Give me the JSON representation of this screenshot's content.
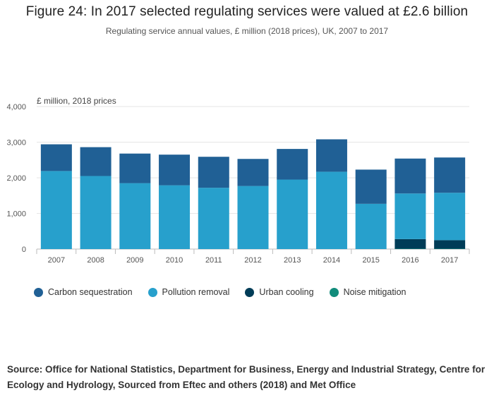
{
  "title": "Figure 24: In 2017 selected regulating services were valued at £2.6 billion",
  "subtitle": "Regulating service annual values, £ million (2018 prices), UK, 2007 to 2017",
  "source": "Source: Office for National Statistics, Department for Business, Energy and Industrial Strategy, Centre for Ecology and Hydrology, Sourced from Eftec and others (2018) and Met Office",
  "legend": [
    {
      "name": "Carbon sequestration",
      "color": "#206095"
    },
    {
      "name": "Pollution removal",
      "color": "#27a0cc"
    },
    {
      "name": "Urban cooling",
      "color": "#003c57"
    },
    {
      "name": "Noise mitigation",
      "color": "#118c7b"
    }
  ],
  "chart_data": {
    "type": "bar",
    "stacked": true,
    "title": "Figure 24: In 2017 selected regulating services were valued at £2.6 billion",
    "ylabel": "£ million, 2018 prices",
    "xlabel": "",
    "ylim": [
      0,
      4000
    ],
    "yticks": [
      0,
      1000,
      2000,
      3000,
      4000
    ],
    "ytick_labels": [
      "0",
      "1,000",
      "2,000",
      "3,000",
      "4,000"
    ],
    "categories": [
      "2007",
      "2008",
      "2009",
      "2010",
      "2011",
      "2012",
      "2013",
      "2014",
      "2015",
      "2016",
      "2017"
    ],
    "series": [
      {
        "name": "Noise mitigation",
        "color": "#118c7b",
        "values": [
          0,
          0,
          0,
          0,
          0,
          0,
          0,
          0,
          0,
          10,
          10
        ]
      },
      {
        "name": "Urban cooling",
        "color": "#003c57",
        "values": [
          0,
          0,
          0,
          0,
          0,
          0,
          0,
          0,
          0,
          270,
          240
        ]
      },
      {
        "name": "Pollution removal",
        "color": "#27a0cc",
        "values": [
          2190,
          2050,
          1850,
          1790,
          1720,
          1770,
          1950,
          2170,
          1270,
          1280,
          1330
        ]
      },
      {
        "name": "Carbon sequestration",
        "color": "#206095",
        "values": [
          750,
          810,
          830,
          860,
          870,
          760,
          860,
          910,
          960,
          980,
          990
        ]
      }
    ],
    "grid": true,
    "legend_position": "bottom"
  }
}
